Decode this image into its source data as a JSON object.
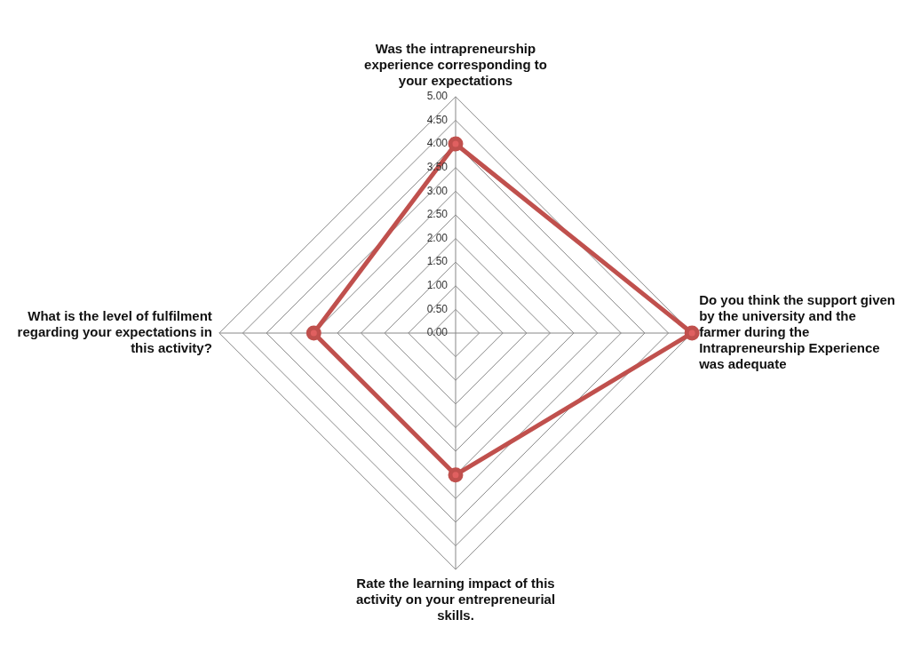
{
  "chart_data": {
    "type": "radar",
    "categories": [
      "Was the intrapreneurship experience corresponding to your expectations",
      "Do you think the support given by the university and the farmer during the Intrapreneurship Experience was adequate",
      "Rate the learning impact of this activity on your entrepreneurial skills.",
      "What is the level of fulfilment regarding your expectations in this activity?"
    ],
    "series": [
      {
        "color": "#c0504d",
        "values": [
          4.0,
          5.0,
          3.0,
          3.0
        ]
      }
    ],
    "ylim": [
      0,
      5
    ],
    "yticks": [
      {
        "value": 0,
        "label": "0.00"
      },
      {
        "value": 0.5,
        "label": "0.50"
      },
      {
        "value": 1,
        "label": "1.00"
      },
      {
        "value": 1.5,
        "label": "1.50"
      },
      {
        "value": 2,
        "label": "2.00"
      },
      {
        "value": 2.5,
        "label": "2.50"
      },
      {
        "value": 3,
        "label": "3.00"
      },
      {
        "value": 3.5,
        "label": "3.50"
      },
      {
        "value": 4,
        "label": "4.00"
      },
      {
        "value": 4.5,
        "label": "4.50"
      },
      {
        "value": 5,
        "label": "5.00"
      }
    ],
    "marker": "circle",
    "legend": false,
    "grid": true
  }
}
